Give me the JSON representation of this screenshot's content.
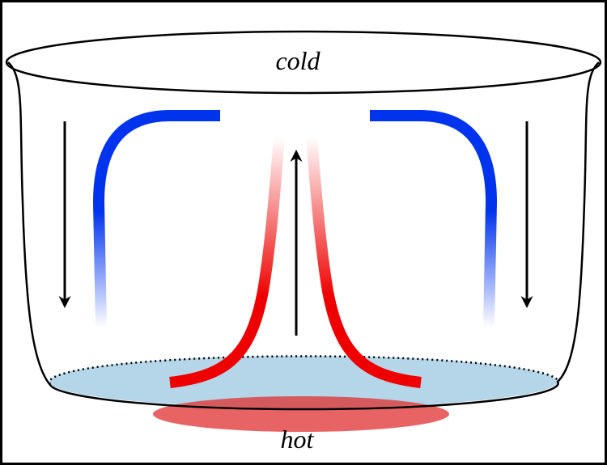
{
  "labels": {
    "top": "cold",
    "bottom": "hot"
  }
}
